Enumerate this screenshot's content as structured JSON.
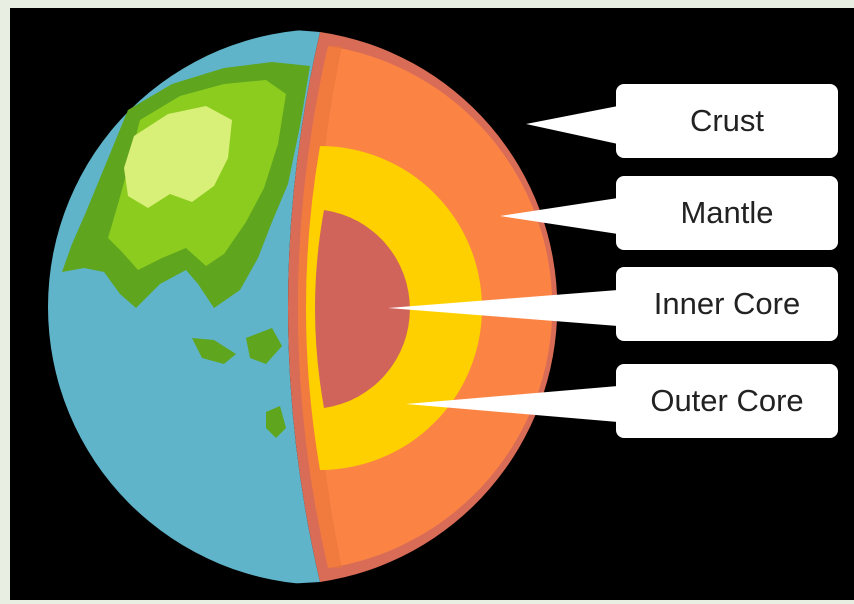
{
  "diagram": {
    "labels": [
      {
        "id": "crust",
        "text": "Crust"
      },
      {
        "id": "mantle",
        "text": "Mantle"
      },
      {
        "id": "inner_core",
        "text": "Inner Core"
      },
      {
        "id": "outer_core",
        "text": "Outer Core"
      }
    ]
  },
  "colors": {
    "background": "#000000",
    "ocean": "#5fb4c9",
    "land_dark": "#5fa51e",
    "land_mid": "#8ccc1e",
    "land_light": "#d8ef78",
    "crust": "#d96c56",
    "mantle": "#fb8444",
    "outer_core": "#ffd000",
    "inner_core": "#d0645a",
    "label_bg": "#ffffff"
  }
}
